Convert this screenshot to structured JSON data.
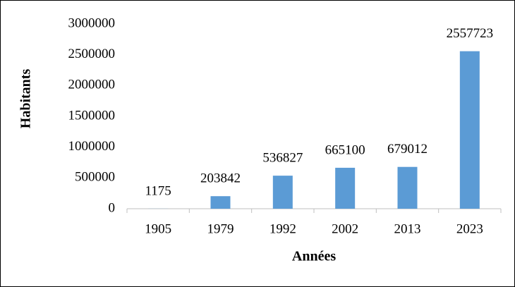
{
  "chart_data": {
    "type": "bar",
    "xlabel": "Années",
    "ylabel": "Habitants",
    "categories": [
      "1905",
      "1979",
      "1992",
      "2002",
      "2013",
      "2023"
    ],
    "values": [
      1175,
      203842,
      536827,
      665100,
      679012,
      2557723
    ],
    "color": "#5b9bd5",
    "ylim": [
      0,
      3000000
    ],
    "yticks": [
      0,
      500000,
      1000000,
      1500000,
      2000000,
      2500000,
      3000000
    ],
    "grid": false,
    "data_labels": true
  }
}
